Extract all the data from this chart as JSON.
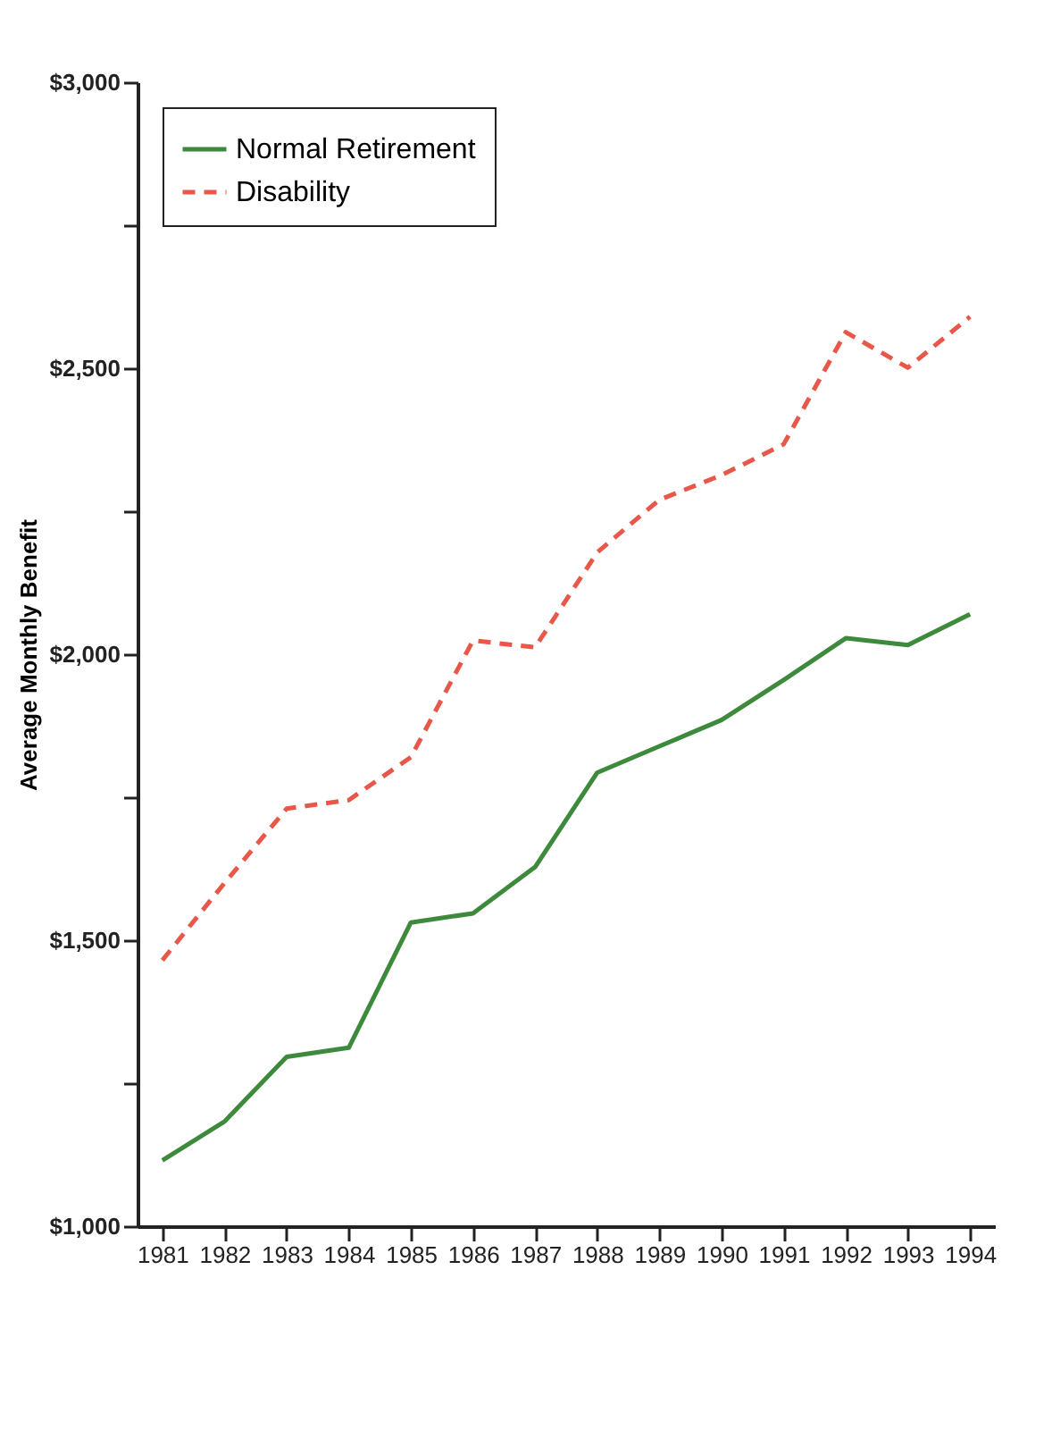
{
  "chart_data": {
    "type": "line",
    "ylabel": "Average Monthly Benefit",
    "x": [
      1981,
      1982,
      1983,
      1984,
      1985,
      1986,
      1987,
      1988,
      1989,
      1990,
      1991,
      1992,
      1993,
      1994
    ],
    "series": [
      {
        "name": "Normal Retirement",
        "color": "#3d8a3d",
        "line_style": "solid",
        "values": [
          1115,
          1183,
          1296,
          1312,
          1531,
          1547,
          1628,
          1793,
          1839,
          1885,
          1955,
          2028,
          2016,
          2070
        ]
      },
      {
        "name": "Disability",
        "color": "#e8584a",
        "line_style": "dashed",
        "values": [
          1465,
          1600,
          1730,
          1745,
          1820,
          2024,
          2012,
          2178,
          2270,
          2313,
          2367,
          2563,
          2501,
          2590
        ]
      }
    ],
    "xlim": [
      1980.6,
      1994.4
    ],
    "xticks": [
      1981,
      1982,
      1983,
      1984,
      1985,
      1986,
      1987,
      1988,
      1989,
      1990,
      1991,
      1992,
      1993,
      1994
    ],
    "ylim": [
      1000,
      3000
    ],
    "yticks": [
      {
        "value": 1000,
        "label": "$1,000"
      },
      {
        "value": 1250,
        "label": null
      },
      {
        "value": 1500,
        "label": "$1,500"
      },
      {
        "value": 1750,
        "label": null
      },
      {
        "value": 2000,
        "label": "$2,000"
      },
      {
        "value": 2250,
        "label": null
      },
      {
        "value": 2500,
        "label": "$2,500"
      },
      {
        "value": 2750,
        "label": null
      },
      {
        "value": 3000,
        "label": "$3,000"
      }
    ],
    "legend": "top left",
    "grid": false,
    "marker": "none"
  }
}
